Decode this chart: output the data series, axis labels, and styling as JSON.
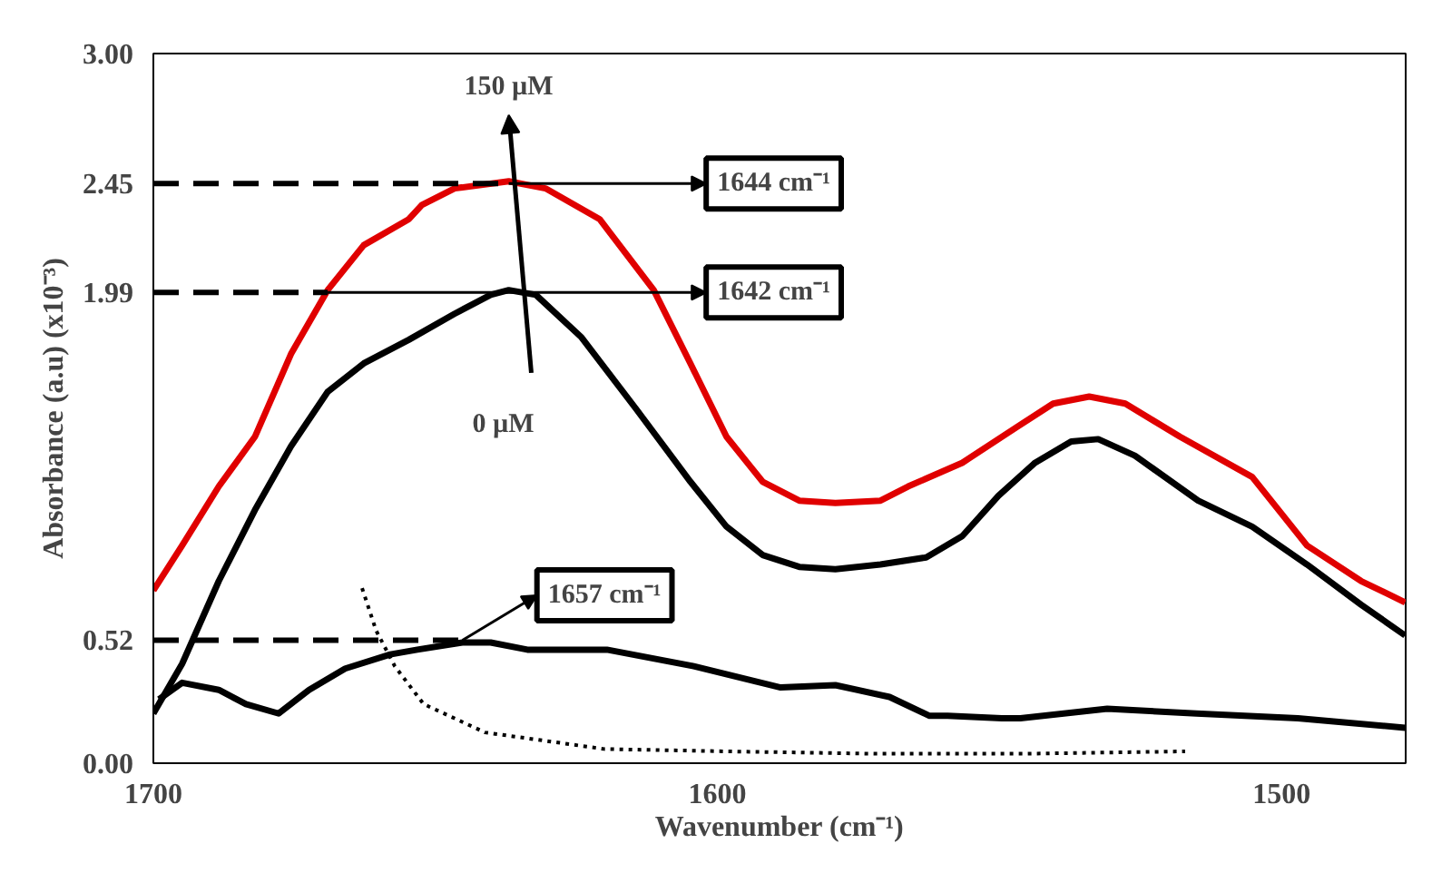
{
  "chart_data": {
    "type": "line",
    "xlabel": "Wavenumber (cm⁻¹)",
    "ylabel": "Absorbance (a.u) (x10⁻³)",
    "xlim": [
      1700,
      1478
    ],
    "xticks": [
      1700,
      1600,
      1500
    ],
    "ylim": [
      0,
      3
    ],
    "yticks": [
      {
        "value": 0,
        "label": "0.00"
      },
      0.52,
      1.99,
      2.45,
      {
        "value": 3,
        "label": "3.00"
      }
    ],
    "grid": false,
    "marker": "none",
    "series": [
      {
        "name": "150 µM",
        "color": "#e00000",
        "line_style": "solid",
        "x": [
          1700,
          1694.9,
          1688.4,
          1682.0,
          1675.6,
          1669.1,
          1662.7,
          1654.7,
          1652.4,
          1646.6,
          1637.0,
          1630.5,
          1620.9,
          1611.3,
          1604.8,
          1598.4,
          1592.0,
          1585.5,
          1579.1,
          1571.1,
          1566.2,
          1556.6,
          1547.0,
          1540.5,
          1534.1,
          1527.7,
          1518.0,
          1505.2,
          1495.5,
          1485.9,
          1478.1
        ],
        "values": [
          0.73,
          0.92,
          1.17,
          1.38,
          1.73,
          2.0,
          2.19,
          2.3,
          2.36,
          2.43,
          2.46,
          2.43,
          2.3,
          2.0,
          1.69,
          1.38,
          1.19,
          1.11,
          1.1,
          1.11,
          1.17,
          1.27,
          1.42,
          1.52,
          1.55,
          1.52,
          1.38,
          1.21,
          0.92,
          0.77,
          0.68
        ]
      },
      {
        "name": "0 µM",
        "color": "#000000",
        "line_style": "solid",
        "x": [
          1700,
          1694.9,
          1688.4,
          1682.0,
          1675.6,
          1669.1,
          1662.7,
          1654.7,
          1646.6,
          1640.2,
          1637.0,
          1632.2,
          1624.1,
          1614.5,
          1604.8,
          1598.4,
          1592.0,
          1585.5,
          1579.1,
          1571.1,
          1563.0,
          1556.6,
          1550.2,
          1543.7,
          1537.3,
          1532.5,
          1526.0,
          1514.8,
          1505.2,
          1495.5,
          1485.9,
          1478.1
        ],
        "values": [
          0.21,
          0.42,
          0.77,
          1.07,
          1.34,
          1.57,
          1.69,
          1.79,
          1.9,
          1.98,
          2.0,
          1.98,
          1.8,
          1.5,
          1.19,
          1.0,
          0.88,
          0.83,
          0.82,
          0.84,
          0.87,
          0.96,
          1.13,
          1.27,
          1.36,
          1.37,
          1.3,
          1.11,
          1.0,
          0.84,
          0.67,
          0.54
        ]
      },
      {
        "color": "#000000",
        "line_style": "solid",
        "x": [
          1699.0,
          1694.9,
          1688.4,
          1683.6,
          1677.8,
          1672.4,
          1666.0,
          1658.0,
          1653.2,
          1645.2,
          1640.2,
          1633.7,
          1619.6,
          1604.2,
          1588.8,
          1579.1,
          1569.5,
          1562.4,
          1559.2,
          1549.6,
          1546.3,
          1530.9,
          1515.1,
          1497.1,
          1478.1
        ],
        "values": [
          0.27,
          0.34,
          0.31,
          0.25,
          0.21,
          0.31,
          0.4,
          0.46,
          0.48,
          0.51,
          0.51,
          0.48,
          0.48,
          0.41,
          0.32,
          0.33,
          0.28,
          0.2,
          0.2,
          0.19,
          0.19,
          0.23,
          0.21,
          0.19,
          0.15
        ]
      },
      {
        "color": "#000000",
        "line_style": "dotted",
        "x": [
          1663.0,
          1660.5,
          1657.2,
          1652.1,
          1641.2,
          1620.1,
          1598.4,
          1572.0,
          1545.0,
          1517.1
        ],
        "values": [
          0.74,
          0.56,
          0.41,
          0.25,
          0.13,
          0.06,
          0.05,
          0.04,
          0.04,
          0.05
        ]
      }
    ],
    "ref_lines": [
      {
        "axis": "y",
        "value": 2.45,
        "color": "#000000",
        "line_style": "dashed"
      },
      {
        "axis": "y",
        "value": 1.99,
        "color": "#000000",
        "line_style": "dashed"
      },
      {
        "axis": "y",
        "value": 0.52,
        "color": "#000000",
        "line_style": "dashed"
      }
    ],
    "annotations": [
      "1644 cm⁻¹",
      "1642 cm⁻¹",
      "1657 cm⁻¹"
    ]
  }
}
